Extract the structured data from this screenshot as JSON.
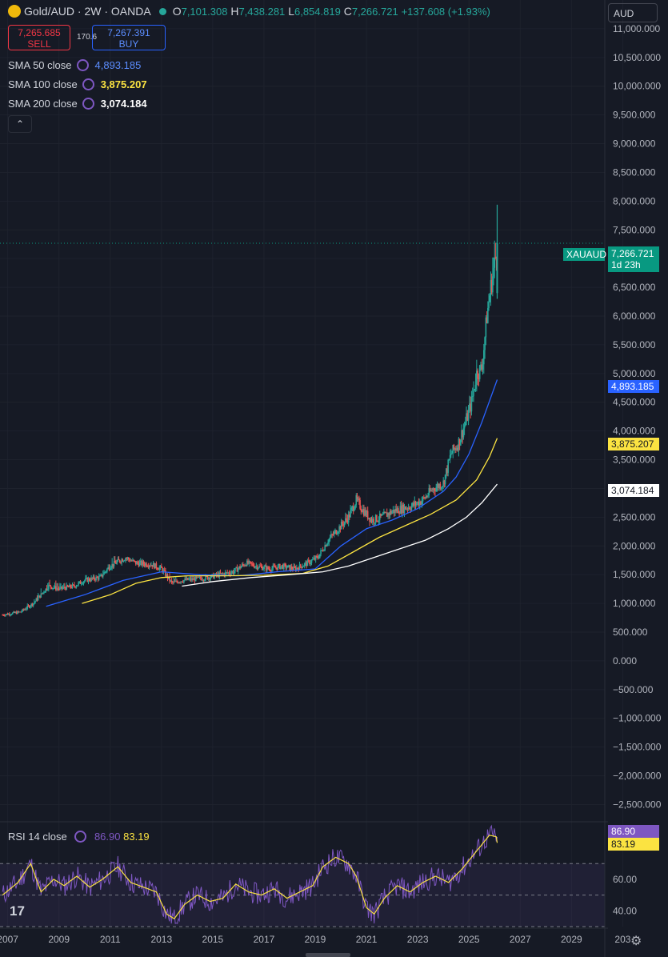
{
  "header": {
    "symbol": "Gold/AUD · 2W · OANDA",
    "open_prefix": "O",
    "open": "7,101.308",
    "high_prefix": "H",
    "high": "7,438.281",
    "low_prefix": "L",
    "low": "6,854.819",
    "close_prefix": "C",
    "close": "7,266.721",
    "change": "+137.608 (+1.93%)"
  },
  "trade": {
    "sell_price": "7,265.685",
    "sell_label": "SELL",
    "spread": "170.6",
    "buy_price": "7,267.391",
    "buy_label": "BUY"
  },
  "indicators": [
    {
      "label": "SMA 50 close",
      "value": "4,893.185",
      "color": "#2962ff"
    },
    {
      "label": "SMA 100 close",
      "value": "3,875.207",
      "color": "#fbe341"
    },
    {
      "label": "SMA 200 close",
      "value": "3,074.184",
      "color": "#ffffff"
    }
  ],
  "collapse_icon": "chevron-up-icon",
  "currency": "AUD",
  "price_labels": {
    "symbol_tag": "XAUAUD",
    "last": "7,266.721",
    "countdown": "1d 23h",
    "sma50": "4,893.185",
    "sma100": "3,875.207",
    "sma200": "3,074.184"
  },
  "rsi": {
    "label": "RSI 14 close",
    "value": "86.90",
    "ma_value": "83.19",
    "tag_value": "86.90",
    "tag_ma": "83.19",
    "ticks": [
      "60.00",
      "40.00"
    ]
  },
  "chart_data": {
    "type": "candlestick",
    "title": "Gold/AUD · 2W · OANDA",
    "ylim": [
      -2800,
      11500
    ],
    "y_ticks": [
      "11,000.000",
      "10,500.000",
      "10,000.000",
      "9,500.000",
      "9,000.000",
      "8,500.000",
      "8,000.000",
      "7,500.000",
      "7,000.000",
      "6,500.000",
      "6,000.000",
      "5,500.000",
      "5,000.000",
      "4,500.000",
      "4,000.000",
      "3,500.000",
      "3,000.000",
      "2,500.000",
      "2,000.000",
      "1,500.000",
      "1,000.000",
      "500.000",
      "0.000",
      "−500.000",
      "−1,000.000",
      "−1,500.000",
      "−2,000.000",
      "−2,500.000"
    ],
    "x_ticks": [
      "2007",
      "2009",
      "2011",
      "2013",
      "2015",
      "2017",
      "2019",
      "2021",
      "2023",
      "2025",
      "2027",
      "2029",
      "203"
    ],
    "xlim": [
      2006.7,
      2030.3
    ],
    "price_series": {
      "name": "Gold/AUD",
      "x": [
        2006.8,
        2007.5,
        2008.0,
        2008.6,
        2009.0,
        2009.6,
        2010.0,
        2010.6,
        2011.0,
        2011.6,
        2012.0,
        2012.6,
        2013.0,
        2013.4,
        2013.8,
        2014.3,
        2014.8,
        2015.3,
        2015.8,
        2016.3,
        2016.7,
        2017.2,
        2017.7,
        2018.2,
        2018.7,
        2019.1,
        2019.5,
        2019.9,
        2020.3,
        2020.6,
        2020.9,
        2021.2,
        2021.6,
        2022.0,
        2022.4,
        2022.8,
        2023.2,
        2023.6,
        2024.0,
        2024.3,
        2024.6,
        2024.9,
        2025.1,
        2025.3,
        2025.5,
        2025.7,
        2025.85,
        2026.0,
        2026.1
      ],
      "close": [
        800,
        850,
        1000,
        1300,
        1250,
        1300,
        1400,
        1450,
        1650,
        1800,
        1700,
        1680,
        1600,
        1350,
        1400,
        1420,
        1450,
        1500,
        1550,
        1700,
        1650,
        1600,
        1650,
        1600,
        1700,
        1800,
        2100,
        2300,
        2500,
        2800,
        2600,
        2450,
        2500,
        2600,
        2650,
        2700,
        2800,
        3000,
        3100,
        3600,
        3800,
        4200,
        4500,
        5000,
        5100,
        6000,
        6500,
        6900,
        7266.7
      ],
      "high": [
        850,
        900,
        1100,
        1550,
        1400,
        1400,
        1500,
        1550,
        1850,
        1850,
        1800,
        1780,
        1700,
        1500,
        1500,
        1500,
        1550,
        1600,
        1650,
        1800,
        1750,
        1700,
        1700,
        1700,
        1800,
        1900,
        2200,
        2400,
        2700,
        2900,
        2750,
        2600,
        2600,
        2750,
        2800,
        2850,
        2950,
        3100,
        3200,
        3800,
        3950,
        4400,
        4800,
        5400,
        5300,
        6300,
        6900,
        7900,
        7438
      ]
    },
    "series": [
      {
        "name": "SMA 50 close",
        "x": [
          2008.5,
          2010,
          2011.5,
          2013,
          2014.5,
          2016,
          2017.5,
          2019,
          2020,
          2021,
          2022,
          2023,
          2024,
          2024.5,
          2025,
          2025.5,
          2026.1
        ],
        "values": [
          950,
          1150,
          1400,
          1550,
          1500,
          1480,
          1550,
          1600,
          2000,
          2300,
          2450,
          2650,
          2950,
          3200,
          3600,
          4150,
          4893.185
        ]
      },
      {
        "name": "SMA 100 close",
        "x": [
          2009.9,
          2011,
          2012,
          2013,
          2014,
          2015.5,
          2017,
          2018.5,
          2019.5,
          2020.5,
          2021.5,
          2022.5,
          2023.5,
          2024.5,
          2025.3,
          2025.8,
          2026.1
        ],
        "values": [
          1000,
          1150,
          1350,
          1450,
          1480,
          1480,
          1490,
          1520,
          1650,
          1900,
          2150,
          2350,
          2550,
          2800,
          3150,
          3550,
          3875.207
        ]
      },
      {
        "name": "SMA 200 close",
        "x": [
          2013.8,
          2015,
          2016.5,
          2018,
          2019.3,
          2020.3,
          2021.3,
          2022.3,
          2023.3,
          2024.2,
          2024.9,
          2025.5,
          2026.1
        ],
        "values": [
          1300,
          1380,
          1450,
          1500,
          1550,
          1650,
          1800,
          1950,
          2100,
          2300,
          2500,
          2750,
          3074.184
        ]
      }
    ],
    "rsi_series": {
      "name": "RSI 14 close",
      "ylim": [
        30,
        95
      ],
      "x": [
        2006.8,
        2007.4,
        2007.9,
        2008.3,
        2008.8,
        2009.2,
        2009.7,
        2010.2,
        2010.7,
        2011.3,
        2011.8,
        2012.3,
        2012.8,
        2013.2,
        2013.5,
        2013.9,
        2014.4,
        2014.9,
        2015.4,
        2015.9,
        2016.4,
        2016.9,
        2017.4,
        2017.9,
        2018.4,
        2018.9,
        2019.3,
        2019.8,
        2020.3,
        2020.6,
        2021.0,
        2021.3,
        2021.7,
        2022.2,
        2022.7,
        2023.2,
        2023.7,
        2024.2,
        2024.7,
        2025.1,
        2025.5,
        2025.8,
        2026.1
      ],
      "values": [
        50,
        58,
        70,
        52,
        60,
        56,
        62,
        55,
        60,
        68,
        58,
        55,
        52,
        38,
        35,
        44,
        50,
        46,
        48,
        57,
        52,
        50,
        54,
        48,
        52,
        56,
        68,
        74,
        70,
        62,
        42,
        38,
        48,
        56,
        52,
        58,
        62,
        58,
        66,
        74,
        82,
        88,
        86.9
      ]
    },
    "rsi_levels": [
      70,
      50,
      30
    ]
  }
}
